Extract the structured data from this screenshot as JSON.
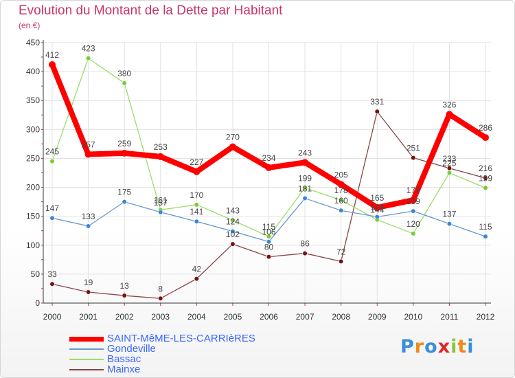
{
  "title": "Evolution du Montant de la Dette par Habitant",
  "unit_label": "(en €)",
  "brand": {
    "text": "Proxiti",
    "letters": [
      {
        "ch": "P",
        "color": "#3a8fd6"
      },
      {
        "ch": "r",
        "color": "#f08a1c"
      },
      {
        "ch": "o",
        "color": "#3a8fd6"
      },
      {
        "ch": "x",
        "color": "#e3262c"
      },
      {
        "ch": "i",
        "color": "#8cc63e"
      },
      {
        "ch": "t",
        "color": "#f08a1c"
      },
      {
        "ch": "i",
        "color": "#3a8fd6"
      }
    ]
  },
  "chart_data": {
    "type": "line",
    "x": [
      "2000",
      "2001",
      "2002",
      "2003",
      "2004",
      "2005",
      "2006",
      "2007",
      "2008",
      "2009",
      "2010",
      "2011",
      "2012"
    ],
    "ylim": [
      0,
      450
    ],
    "yticks": [
      0,
      50,
      100,
      150,
      200,
      250,
      300,
      350,
      400,
      450
    ],
    "grid": true,
    "legend_position": "bottom-left",
    "series": [
      {
        "name": "SAINT-MêME-LES-CARRIèRES",
        "color": "#ff0000",
        "marker": "#ff0000",
        "width": 8,
        "values": [
          412,
          257,
          259,
          253,
          227,
          270,
          234,
          243,
          205,
          165,
          178,
          326,
          286
        ]
      },
      {
        "name": "Gondeville",
        "color": "#6699cc",
        "marker": "#3a86d6",
        "width": 1.3,
        "values": [
          147,
          133,
          175,
          157,
          141,
          124,
          106,
          181,
          160,
          149,
          159,
          137,
          115
        ]
      },
      {
        "name": "Bassac",
        "color": "#99dd66",
        "marker": "#77cc33",
        "width": 1.3,
        "values": [
          245,
          423,
          380,
          161,
          170,
          143,
          115,
          199,
          178,
          144,
          120,
          225,
          199
        ]
      },
      {
        "name": "Mainxe",
        "color": "#884444",
        "marker": "#771111",
        "width": 1.3,
        "values": [
          33,
          19,
          13,
          8,
          42,
          102,
          80,
          86,
          72,
          331,
          251,
          233,
          216
        ]
      }
    ]
  }
}
